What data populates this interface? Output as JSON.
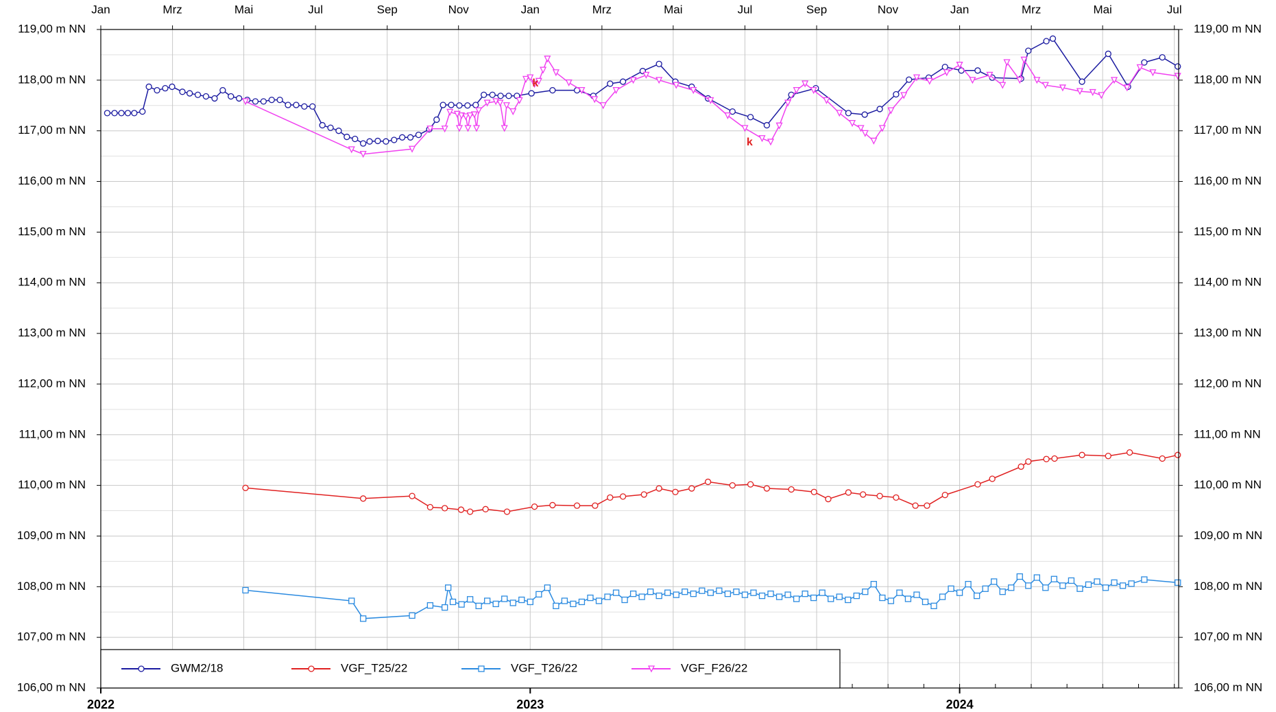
{
  "chart_data": {
    "type": "line",
    "xlim": [
      2022,
      2024.51
    ],
    "xticks": [
      {
        "value": 2022,
        "label": "Jan"
      },
      {
        "value": 2022.167,
        "label": "Mrz"
      },
      {
        "value": 2022.333,
        "label": "Mai"
      },
      {
        "value": 2022.5,
        "label": "Jul"
      },
      {
        "value": 2022.667,
        "label": "Sep"
      },
      {
        "value": 2022.833,
        "label": "Nov"
      },
      {
        "value": 2023,
        "label": "Jan"
      },
      {
        "value": 2023.167,
        "label": "Mrz"
      },
      {
        "value": 2023.333,
        "label": "Mai"
      },
      {
        "value": 2023.5,
        "label": "Jul"
      },
      {
        "value": 2023.667,
        "label": "Sep"
      },
      {
        "value": 2023.833,
        "label": "Nov"
      },
      {
        "value": 2024,
        "label": "Jan"
      },
      {
        "value": 2024.167,
        "label": "Mrz"
      },
      {
        "value": 2024.333,
        "label": "Mai"
      },
      {
        "value": 2024.5,
        "label": "Jul"
      }
    ],
    "year_ticks": [
      2022,
      2023,
      2024
    ],
    "ylim": [
      106,
      119
    ],
    "yticks": [
      {
        "value": 106,
        "label": "106,00 m NN"
      },
      {
        "value": 107,
        "label": "107,00 m NN"
      },
      {
        "value": 108,
        "label": "108,00 m NN"
      },
      {
        "value": 109,
        "label": "109,00 m NN"
      },
      {
        "value": 110,
        "label": "110,00 m NN"
      },
      {
        "value": 111,
        "label": "111,00 m NN"
      },
      {
        "value": 112,
        "label": "112,00 m NN"
      },
      {
        "value": 113,
        "label": "113,00 m NN"
      },
      {
        "value": 114,
        "label": "114,00 m NN"
      },
      {
        "value": 115,
        "label": "115,00 m NN"
      },
      {
        "value": 116,
        "label": "116,00 m NN"
      },
      {
        "value": 117,
        "label": "117,00 m NN"
      },
      {
        "value": 118,
        "label": "118,00 m NN"
      },
      {
        "value": 119,
        "label": "119,00 m NN"
      }
    ],
    "grid": true,
    "legend": "bottom-left",
    "series": [
      {
        "name": "GWM2/18",
        "color": "#1a1aa0",
        "marker": "circle",
        "x": [
          2022.015,
          2022.032,
          2022.048,
          2022.063,
          2022.078,
          2022.097,
          2022.112,
          2022.131,
          2022.15,
          2022.166,
          2022.19,
          2022.207,
          2022.226,
          2022.245,
          2022.265,
          2022.284,
          2022.303,
          2022.322,
          2022.341,
          2022.36,
          2022.379,
          2022.398,
          2022.417,
          2022.436,
          2022.455,
          2022.474,
          2022.493,
          2022.516,
          2022.535,
          2022.554,
          2022.573,
          2022.592,
          2022.611,
          2022.626,
          2022.645,
          2022.664,
          2022.683,
          2022.702,
          2022.721,
          2022.74,
          2022.765,
          2022.782,
          2022.797,
          2022.816,
          2022.835,
          2022.854,
          2022.873,
          2022.892,
          2022.912,
          2022.931,
          2022.95,
          2022.969,
          2023.003,
          2023.052,
          2023.109,
          2023.147,
          2023.186,
          2023.216,
          2023.262,
          2023.3,
          2023.338,
          2023.376,
          2023.414,
          2023.471,
          2023.513,
          2023.551,
          2023.608,
          2023.665,
          2023.741,
          2023.779,
          2023.814,
          2023.852,
          2023.882,
          2023.928,
          2023.966,
          2024.004,
          2024.042,
          2024.076,
          2024.143,
          2024.16,
          2024.202,
          2024.217,
          2024.285,
          2024.346,
          2024.392,
          2024.43,
          2024.472,
          2024.508
        ],
        "values": [
          117.35,
          117.35,
          117.35,
          117.35,
          117.35,
          117.38,
          117.87,
          117.8,
          117.84,
          117.87,
          117.77,
          117.74,
          117.71,
          117.68,
          117.64,
          117.8,
          117.68,
          117.64,
          117.61,
          117.58,
          117.58,
          117.61,
          117.61,
          117.51,
          117.51,
          117.48,
          117.48,
          117.11,
          117.06,
          117.0,
          116.88,
          116.84,
          116.75,
          116.79,
          116.8,
          116.79,
          116.82,
          116.87,
          116.87,
          116.92,
          117.03,
          117.22,
          117.51,
          117.51,
          117.5,
          117.5,
          117.51,
          117.71,
          117.71,
          117.69,
          117.69,
          117.69,
          117.74,
          117.8,
          117.8,
          117.69,
          117.93,
          117.97,
          118.18,
          118.32,
          117.97,
          117.87,
          117.64,
          117.38,
          117.27,
          117.11,
          117.71,
          117.84,
          117.35,
          117.32,
          117.43,
          117.72,
          118.01,
          118.05,
          118.26,
          118.19,
          118.19,
          118.05,
          118.03,
          118.58,
          118.77,
          118.82,
          117.97,
          118.52,
          117.87,
          118.35,
          118.45,
          118.27
        ]
      },
      {
        "name": "VGF_T25/22",
        "color": "#e02020",
        "marker": "circle",
        "x": [
          2022.337,
          2022.611,
          2022.725,
          2022.767,
          2022.801,
          2022.839,
          2022.86,
          2022.896,
          2022.946,
          2023.01,
          2023.052,
          2023.109,
          2023.151,
          2023.186,
          2023.216,
          2023.265,
          2023.3,
          2023.338,
          2023.376,
          2023.414,
          2023.471,
          2023.513,
          2023.551,
          2023.608,
          2023.661,
          2023.694,
          2023.741,
          2023.775,
          2023.814,
          2023.852,
          2023.897,
          2023.924,
          2023.966,
          2024.042,
          2024.076,
          2024.143,
          2024.16,
          2024.202,
          2024.221,
          2024.285,
          2024.346,
          2024.396,
          2024.472,
          2024.508
        ],
        "values": [
          109.95,
          109.74,
          109.79,
          109.57,
          109.55,
          109.52,
          109.48,
          109.53,
          109.48,
          109.58,
          109.61,
          109.6,
          109.6,
          109.76,
          109.78,
          109.82,
          109.94,
          109.87,
          109.94,
          110.07,
          110.0,
          110.02,
          109.94,
          109.92,
          109.87,
          109.73,
          109.86,
          109.82,
          109.79,
          109.76,
          109.6,
          109.6,
          109.81,
          110.02,
          110.13,
          110.37,
          110.47,
          110.52,
          110.53,
          110.6,
          110.58,
          110.65,
          110.53,
          110.6
        ]
      },
      {
        "name": "VGF_T26/22",
        "color": "#2a8ae0",
        "marker": "square",
        "x": [
          2022.337,
          2022.584,
          2022.611,
          2022.725,
          2022.767,
          2022.801,
          2022.809,
          2022.82,
          2022.84,
          2022.86,
          2022.88,
          2022.9,
          2022.92,
          2022.94,
          2022.96,
          2022.98,
          2023.0,
          2023.02,
          2023.04,
          2023.06,
          2023.08,
          2023.1,
          2023.12,
          2023.14,
          2023.16,
          2023.18,
          2023.2,
          2023.22,
          2023.24,
          2023.26,
          2023.28,
          2023.3,
          2023.32,
          2023.34,
          2023.36,
          2023.38,
          2023.4,
          2023.42,
          2023.44,
          2023.46,
          2023.48,
          2023.5,
          2023.52,
          2023.54,
          2023.56,
          2023.58,
          2023.6,
          2023.62,
          2023.64,
          2023.66,
          2023.68,
          2023.7,
          2023.72,
          2023.74,
          2023.76,
          2023.78,
          2023.8,
          2023.82,
          2023.84,
          2023.86,
          2023.88,
          2023.9,
          2023.92,
          2023.94,
          2023.96,
          2023.98,
          2024.0,
          2024.02,
          2024.04,
          2024.06,
          2024.08,
          2024.1,
          2024.12,
          2024.14,
          2024.16,
          2024.18,
          2024.2,
          2024.22,
          2024.24,
          2024.26,
          2024.28,
          2024.3,
          2024.32,
          2024.34,
          2024.36,
          2024.38,
          2024.4,
          2024.43,
          2024.508
        ],
        "values": [
          107.93,
          107.72,
          107.37,
          107.43,
          107.63,
          107.59,
          107.98,
          107.7,
          107.65,
          107.75,
          107.62,
          107.72,
          107.66,
          107.76,
          107.68,
          107.74,
          107.7,
          107.85,
          107.98,
          107.62,
          107.72,
          107.66,
          107.7,
          107.78,
          107.72,
          107.8,
          107.88,
          107.74,
          107.86,
          107.8,
          107.9,
          107.82,
          107.88,
          107.84,
          107.9,
          107.86,
          107.92,
          107.88,
          107.92,
          107.86,
          107.9,
          107.84,
          107.88,
          107.82,
          107.86,
          107.8,
          107.84,
          107.76,
          107.86,
          107.78,
          107.88,
          107.76,
          107.8,
          107.74,
          107.82,
          107.9,
          108.05,
          107.78,
          107.72,
          107.88,
          107.76,
          107.84,
          107.7,
          107.62,
          107.8,
          107.96,
          107.88,
          108.05,
          107.82,
          107.96,
          108.1,
          107.9,
          107.98,
          108.2,
          108.02,
          108.18,
          107.98,
          108.15,
          108.02,
          108.12,
          107.96,
          108.04,
          108.1,
          107.98,
          108.08,
          108.02,
          108.06,
          108.14,
          108.08
        ]
      },
      {
        "name": "VGF_F26/22",
        "color": "#f040f0",
        "marker": "triangle-down",
        "x": [
          2022.337,
          2022.584,
          2022.611,
          2022.725,
          2022.767,
          2022.801,
          2022.813,
          2022.83,
          2022.835,
          2022.84,
          2022.85,
          2022.855,
          2022.86,
          2022.87,
          2022.875,
          2022.88,
          2022.9,
          2022.92,
          2022.93,
          2022.94,
          2022.945,
          2022.96,
          2022.975,
          2022.99,
          2023.0,
          2023.01,
          2023.02,
          2023.03,
          2023.04,
          2023.06,
          2023.09,
          2023.12,
          2023.15,
          2023.17,
          2023.2,
          2023.24,
          2023.27,
          2023.3,
          2023.34,
          2023.38,
          2023.42,
          2023.46,
          2023.5,
          2023.54,
          2023.56,
          2023.58,
          2023.6,
          2023.62,
          2023.64,
          2023.66,
          2023.69,
          2023.72,
          2023.75,
          2023.77,
          2023.78,
          2023.8,
          2023.82,
          2023.84,
          2023.87,
          2023.9,
          2023.93,
          2023.97,
          2024.0,
          2024.03,
          2024.07,
          2024.1,
          2024.11,
          2024.14,
          2024.15,
          2024.18,
          2024.2,
          2024.24,
          2024.28,
          2024.31,
          2024.33,
          2024.36,
          2024.39,
          2024.42,
          2024.45,
          2024.508
        ],
        "values": [
          117.58,
          116.63,
          116.54,
          116.64,
          117.04,
          117.04,
          117.37,
          117.33,
          117.05,
          117.3,
          117.28,
          117.05,
          117.3,
          117.32,
          117.05,
          117.4,
          117.55,
          117.58,
          117.55,
          117.05,
          117.5,
          117.38,
          117.6,
          118.02,
          118.05,
          117.92,
          117.98,
          118.2,
          118.42,
          118.15,
          117.95,
          117.8,
          117.62,
          117.5,
          117.8,
          118.0,
          118.1,
          118.0,
          117.9,
          117.8,
          117.6,
          117.3,
          117.05,
          116.85,
          116.78,
          117.1,
          117.55,
          117.8,
          117.93,
          117.8,
          117.6,
          117.35,
          117.15,
          117.05,
          116.95,
          116.8,
          117.05,
          117.4,
          117.7,
          118.05,
          117.98,
          118.15,
          118.3,
          118.0,
          118.1,
          117.9,
          118.35,
          118.0,
          118.4,
          118.0,
          117.9,
          117.85,
          117.78,
          117.76,
          117.7,
          118.0,
          117.85,
          118.25,
          118.15,
          118.08
        ]
      }
    ],
    "annotations": [
      {
        "text": "k",
        "x": 2023.012,
        "y": 117.93,
        "color": "#e02020"
      },
      {
        "text": "k",
        "x": 2023.511,
        "y": 116.77,
        "color": "#e02020"
      }
    ]
  }
}
